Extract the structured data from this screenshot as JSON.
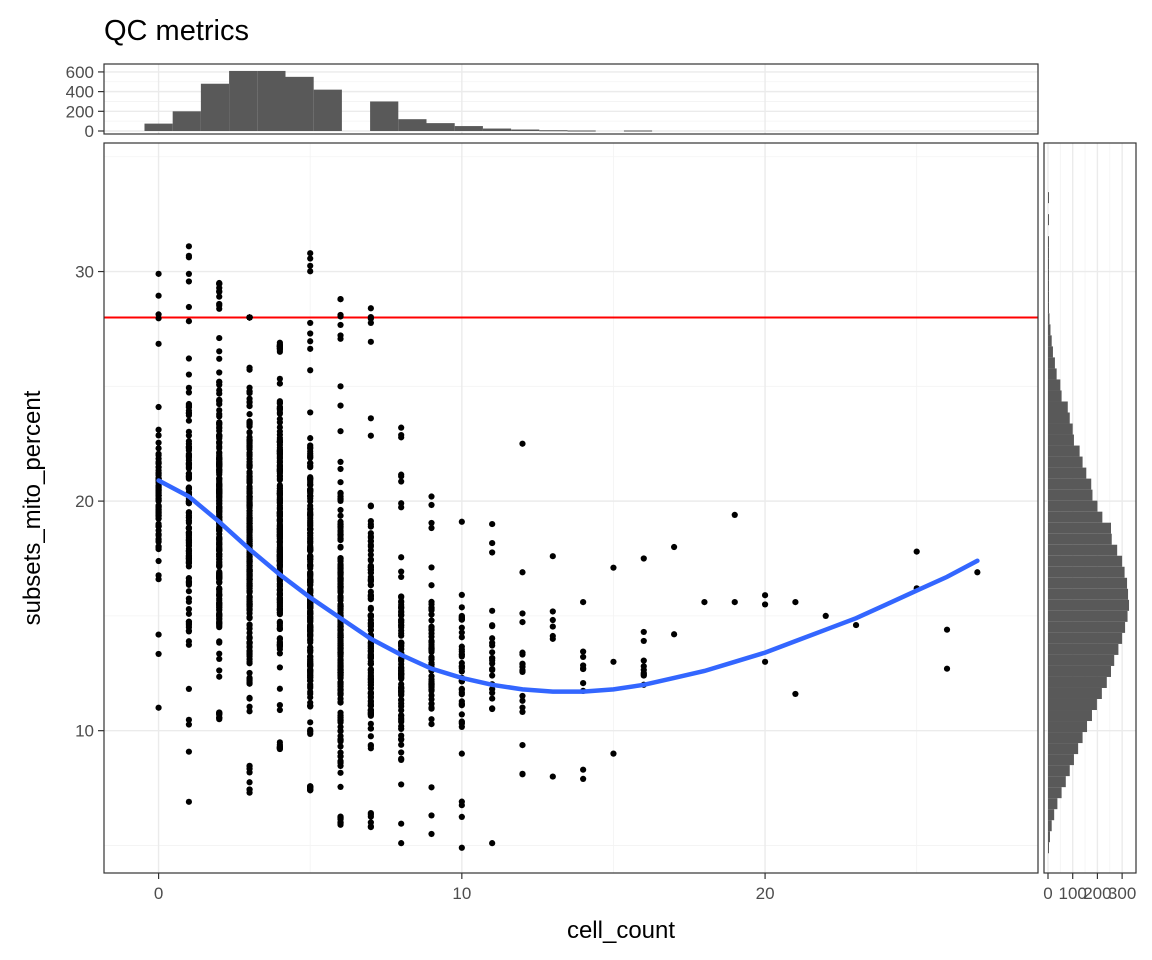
{
  "chart_data": {
    "title": "QC metrics",
    "main": {
      "type": "scatter",
      "xlabel": "cell_count",
      "ylabel": "subsets_mito_percent",
      "xlim": [
        -1.8,
        29
      ],
      "ylim": [
        3.8,
        35.6
      ],
      "x_ticks": [
        0,
        10,
        20
      ],
      "x_tick_labels": [
        "0",
        "10",
        "20"
      ],
      "y_ticks": [
        10,
        20,
        30
      ],
      "y_tick_labels": [
        "10",
        "20",
        "30"
      ],
      "grid": true,
      "hline": {
        "y": 28,
        "color": "#ff0000"
      },
      "smooth": {
        "color": "#3366ff",
        "x": [
          0,
          1,
          2,
          3,
          4,
          5,
          6,
          7,
          8,
          9,
          10,
          11,
          12,
          13,
          14,
          15,
          16,
          17,
          18,
          19,
          20,
          21,
          22,
          23,
          24,
          25,
          26,
          27
        ],
        "y": [
          20.9,
          20.2,
          19.1,
          17.9,
          16.8,
          15.8,
          14.9,
          14.0,
          13.3,
          12.7,
          12.3,
          12.0,
          11.8,
          11.7,
          11.7,
          11.8,
          12.0,
          12.3,
          12.6,
          13.0,
          13.4,
          13.9,
          14.4,
          14.9,
          15.5,
          16.1,
          16.7,
          17.4
        ]
      },
      "columns": [
        {
          "x": 0,
          "min": 11.0,
          "max": 29.9,
          "dense_min": 14.5,
          "dense_max": 25.5,
          "n": 75
        },
        {
          "x": 1,
          "min": 6.9,
          "max": 31.1,
          "dense_min": 12.0,
          "dense_max": 27.0,
          "n": 120
        },
        {
          "x": 2,
          "min": 10.5,
          "max": 29.5,
          "dense_min": 10.8,
          "dense_max": 28.2,
          "n": 220
        },
        {
          "x": 3,
          "min": 7.3,
          "max": 28.0,
          "dense_min": 8.5,
          "dense_max": 28.0,
          "n": 240
        },
        {
          "x": 4,
          "min": 9.2,
          "max": 26.9,
          "dense_min": 9.5,
          "dense_max": 26.5,
          "n": 240
        },
        {
          "x": 5,
          "min": 7.4,
          "max": 30.8,
          "dense_min": 7.6,
          "dense_max": 25.0,
          "n": 230
        },
        {
          "x": 6,
          "min": 5.9,
          "max": 28.8,
          "dense_min": 6.3,
          "dense_max": 23.0,
          "n": 200
        },
        {
          "x": 7,
          "min": 5.8,
          "max": 28.4,
          "dense_min": 6.5,
          "dense_max": 22.0,
          "n": 130
        },
        {
          "x": 8,
          "min": 5.1,
          "max": 23.2,
          "dense_min": 6.0,
          "dense_max": 19.7,
          "n": 90
        },
        {
          "x": 9,
          "min": 5.5,
          "max": 20.2,
          "dense_min": 8.2,
          "dense_max": 18.5,
          "n": 55
        },
        {
          "x": 10,
          "min": 4.9,
          "max": 19.1,
          "dense_min": 7.8,
          "dense_max": 18.0,
          "n": 40
        },
        {
          "x": 11,
          "min": 5.1,
          "max": 19.0,
          "dense_min": 9.0,
          "dense_max": 16.5,
          "n": 20
        },
        {
          "x": 12,
          "min": 8.1,
          "max": 16.9,
          "dense_min": 9.0,
          "dense_max": 16.0,
          "n": 14
        },
        {
          "x": 13,
          "min": 8.0,
          "max": 17.6,
          "dense_min": 12.4,
          "dense_max": 17.0,
          "n": 5
        },
        {
          "x": 14,
          "min": 7.9,
          "max": 15.6,
          "dense_min": 10.5,
          "dense_max": 15.0,
          "n": 7
        },
        {
          "x": 16,
          "min": 12.0,
          "max": 17.5,
          "dense_min": 12.0,
          "dense_max": 13.2,
          "n": 6
        }
      ],
      "extra_points": [
        {
          "x": 12,
          "y": 22.5
        },
        {
          "x": 15,
          "y": 17.1
        },
        {
          "x": 15,
          "y": 13.0
        },
        {
          "x": 15,
          "y": 9.0
        },
        {
          "x": 16,
          "y": 14.3
        },
        {
          "x": 17,
          "y": 18.0
        },
        {
          "x": 17,
          "y": 14.2
        },
        {
          "x": 18,
          "y": 15.6
        },
        {
          "x": 19,
          "y": 19.4
        },
        {
          "x": 19,
          "y": 15.6
        },
        {
          "x": 20,
          "y": 15.9
        },
        {
          "x": 20,
          "y": 15.5
        },
        {
          "x": 20,
          "y": 13.0
        },
        {
          "x": 21,
          "y": 15.6
        },
        {
          "x": 21,
          "y": 11.6
        },
        {
          "x": 22,
          "y": 15.0
        },
        {
          "x": 23,
          "y": 14.6
        },
        {
          "x": 25,
          "y": 17.8
        },
        {
          "x": 25,
          "y": 16.2
        },
        {
          "x": 26,
          "y": 14.4
        },
        {
          "x": 26,
          "y": 12.7
        },
        {
          "x": 27,
          "y": 16.9
        }
      ]
    },
    "top_histogram": {
      "type": "bar",
      "bin_width": 0.93,
      "bin_centers": [
        0,
        0.93,
        1.86,
        2.79,
        3.72,
        4.65,
        5.58,
        6.51,
        7.44,
        8.37,
        9.3,
        10.23,
        11.16,
        12.09,
        13.02,
        13.95,
        14.88,
        15.81,
        16.74
      ],
      "counts": [
        75,
        200,
        480,
        610,
        610,
        550,
        420,
        0,
        300,
        120,
        80,
        50,
        25,
        15,
        8,
        5,
        0,
        5,
        0
      ],
      "ylim": [
        0,
        650
      ],
      "y_ticks": [
        0,
        200,
        400,
        600
      ],
      "y_tick_labels": [
        "0",
        "200",
        "400",
        "600"
      ]
    },
    "right_histogram": {
      "type": "bar",
      "orientation": "horizontal",
      "bin_width": 0.48,
      "bin_centers": [
        4.9,
        5.38,
        5.86,
        6.34,
        6.82,
        7.3,
        7.78,
        8.26,
        8.74,
        9.22,
        9.7,
        10.18,
        10.66,
        11.14,
        11.62,
        12.1,
        12.58,
        13.06,
        13.54,
        14.02,
        14.5,
        14.98,
        15.46,
        15.94,
        16.42,
        16.9,
        17.38,
        17.86,
        18.34,
        18.82,
        19.3,
        19.78,
        20.26,
        20.74,
        21.22,
        21.7,
        22.18,
        22.66,
        23.14,
        23.62,
        24.1,
        24.58,
        25.06,
        25.54,
        26.02,
        26.5,
        26.98,
        27.46,
        27.94,
        28.42,
        28.9,
        29.38,
        29.86,
        30.34,
        30.82,
        31.3,
        31.78,
        32.26,
        32.74,
        33.22
      ],
      "counts": [
        4,
        8,
        15,
        25,
        38,
        55,
        72,
        88,
        105,
        122,
        140,
        158,
        178,
        198,
        218,
        238,
        255,
        268,
        285,
        300,
        312,
        322,
        328,
        324,
        320,
        310,
        300,
        280,
        258,
        255,
        220,
        200,
        180,
        175,
        155,
        140,
        128,
        105,
        100,
        88,
        80,
        55,
        50,
        35,
        28,
        20,
        15,
        10,
        6,
        4,
        3,
        2,
        2,
        1,
        1,
        1,
        0,
        1,
        0,
        1
      ],
      "xlim": [
        0,
        340
      ],
      "x_ticks": [
        0,
        100,
        200,
        300
      ],
      "x_tick_labels": [
        "0",
        "100",
        "200",
        "300"
      ]
    }
  }
}
